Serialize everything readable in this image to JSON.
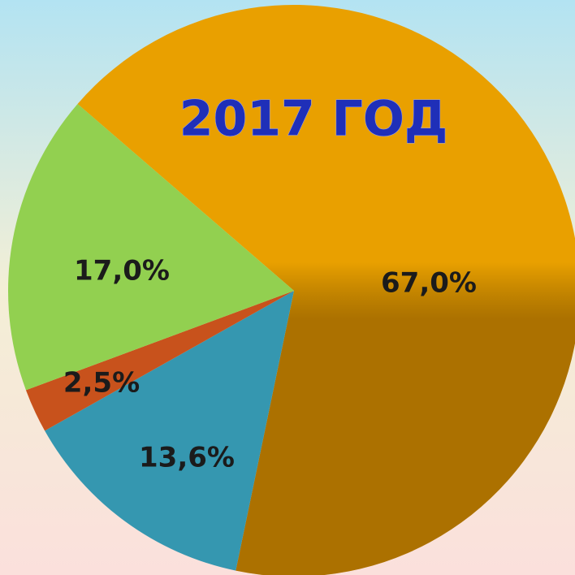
{
  "chart_data": {
    "type": "pie",
    "title": "2017 ГОД",
    "values": [
      67.0,
      13.6,
      2.5,
      17.0
    ],
    "value_labels": [
      "67,0%",
      "13,6%",
      "2,5%",
      "17,0%"
    ],
    "colors": [
      "#e9a000",
      "#3597b0",
      "#c8521c",
      "#92d050"
    ]
  }
}
